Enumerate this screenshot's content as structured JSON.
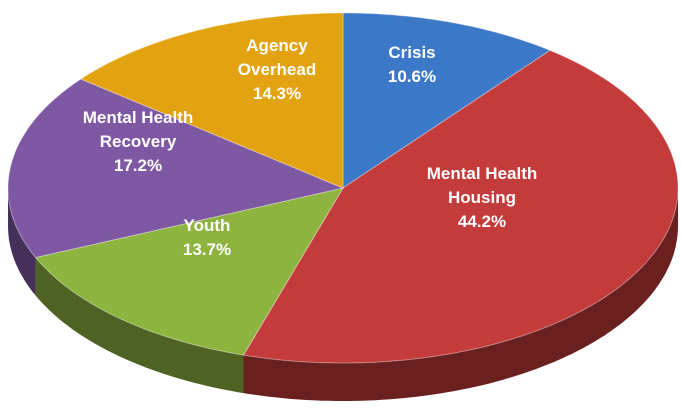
{
  "chart_data": {
    "type": "pie",
    "categories": [
      "Crisis",
      "Mental Health Housing",
      "Youth",
      "Mental Health Recovery",
      "Agency Overhead"
    ],
    "values": [
      10.6,
      44.2,
      13.7,
      17.2,
      14.3
    ],
    "value_labels": [
      "10.6%",
      "44.2%",
      "13.7%",
      "17.2%",
      "14.3%"
    ],
    "colors": [
      "#3b78c8",
      "#c33b3b",
      "#8db43f",
      "#7e58a3",
      "#e3a20f"
    ]
  }
}
